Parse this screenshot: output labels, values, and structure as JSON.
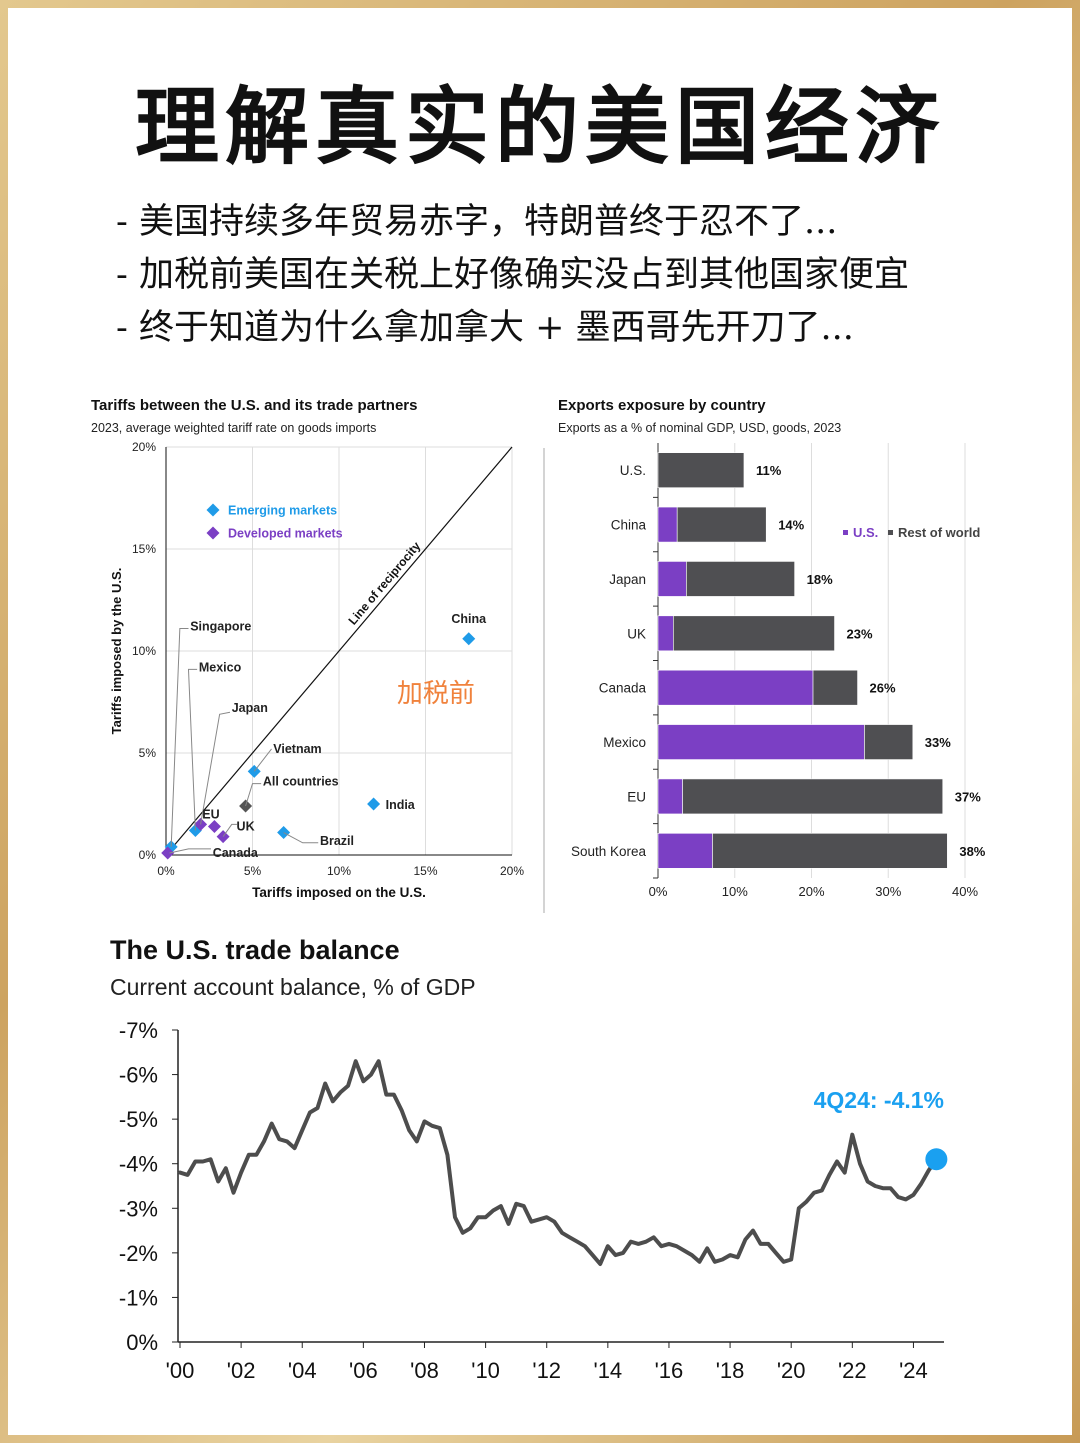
{
  "header": {
    "title": "理解真实的美国经济",
    "bullets": [
      "- 美国持续多年贸易赤字，特朗普终于忍不了...",
      "- 加税前美国在关税上好像确实没占到其他国家便宜",
      "- 终于知道为什么拿加拿大 + 墨西哥先开刀了..."
    ]
  },
  "colors": {
    "emerging": "#1f9be8",
    "developed": "#7b3fc4",
    "gray": "#555555",
    "line": "#4d4d4d",
    "highlight": "#1aa0f0",
    "annotation": "#f0823c"
  },
  "chart_data": [
    {
      "type": "scatter",
      "title": "Tariffs between the U.S. and its trade partners",
      "subtitle": "2023, average weighted tariff rate on goods imports",
      "xlabel": "Tariffs imposed on the U.S.",
      "ylabel": "Tariffs imposed by the U.S.",
      "xlim": [
        0,
        20
      ],
      "ylim": [
        0,
        20
      ],
      "x_ticks": [
        "0%",
        "5%",
        "10%",
        "15%",
        "20%"
      ],
      "y_ticks": [
        "0%",
        "5%",
        "10%",
        "15%",
        "20%"
      ],
      "diagonal_label": "Line of reciprocity",
      "annotation": "加税前",
      "legend": [
        "Emerging markets",
        "Developed markets"
      ],
      "points": [
        {
          "label": "China",
          "x": 17.5,
          "y": 10.6,
          "group": "emerging"
        },
        {
          "label": "India",
          "x": 12.0,
          "y": 2.5,
          "group": "emerging"
        },
        {
          "label": "Brazil",
          "x": 6.8,
          "y": 1.1,
          "group": "emerging"
        },
        {
          "label": "Vietnam",
          "x": 5.1,
          "y": 4.1,
          "group": "emerging"
        },
        {
          "label": "All countries",
          "x": 4.6,
          "y": 2.4,
          "group": "all"
        },
        {
          "label": "Singapore",
          "x": 0.3,
          "y": 0.4,
          "group": "emerging"
        },
        {
          "label": "Mexico",
          "x": 1.7,
          "y": 1.2,
          "group": "emerging"
        },
        {
          "label": "Japan",
          "x": 2.0,
          "y": 1.5,
          "group": "developed"
        },
        {
          "label": "EU",
          "x": 2.8,
          "y": 1.4,
          "group": "developed"
        },
        {
          "label": "UK",
          "x": 3.3,
          "y": 0.9,
          "group": "developed"
        },
        {
          "label": "Canada",
          "x": 0.1,
          "y": 0.1,
          "group": "developed"
        }
      ]
    },
    {
      "type": "bar",
      "title": "Exports exposure by country",
      "subtitle": "Exports as a % of nominal GDP, USD, goods, 2023",
      "categories": [
        "U.S.",
        "China",
        "Japan",
        "UK",
        "Canada",
        "Mexico",
        "EU",
        "South Korea"
      ],
      "series": [
        {
          "name": "U.S.",
          "values": [
            0,
            2.5,
            3.7,
            2.0,
            20.2,
            26.9,
            3.2,
            7.1
          ]
        },
        {
          "name": "Rest of world",
          "values": [
            11.2,
            11.6,
            14.1,
            21.0,
            5.8,
            6.3,
            33.9,
            30.6
          ]
        }
      ],
      "totals": [
        "11%",
        "14%",
        "18%",
        "23%",
        "26%",
        "33%",
        "37%",
        "38%"
      ],
      "xlim": [
        0,
        40
      ],
      "x_ticks": [
        "0%",
        "10%",
        "20%",
        "30%",
        "40%"
      ],
      "legend": [
        "U.S.",
        "Rest of world"
      ]
    },
    {
      "type": "line",
      "title": "The U.S. trade balance",
      "subtitle": "Current account balance, % of GDP",
      "ylim": [
        0,
        -7
      ],
      "y_ticks": [
        "-7%",
        "-6%",
        "-5%",
        "-4%",
        "-3%",
        "-2%",
        "-1%",
        "0%"
      ],
      "x_ticks": [
        "'00",
        "'02",
        "'04",
        "'06",
        "'08",
        "'10",
        "'12",
        "'14",
        "'16",
        "'18",
        "'20",
        "'22",
        "'24"
      ],
      "callout": "4Q24: -4.1%",
      "series": [
        {
          "name": "Current account balance",
          "x": [
            2000.0,
            2000.25,
            2000.5,
            2000.75,
            2001.0,
            2001.25,
            2001.5,
            2001.75,
            2002.0,
            2002.25,
            2002.5,
            2002.75,
            2003.0,
            2003.25,
            2003.5,
            2003.75,
            2004.0,
            2004.25,
            2004.5,
            2004.75,
            2005.0,
            2005.25,
            2005.5,
            2005.75,
            2006.0,
            2006.25,
            2006.5,
            2006.75,
            2007.0,
            2007.25,
            2007.5,
            2007.75,
            2008.0,
            2008.25,
            2008.5,
            2008.75,
            2009.0,
            2009.25,
            2009.5,
            2009.75,
            2010.0,
            2010.25,
            2010.5,
            2010.75,
            2011.0,
            2011.25,
            2011.5,
            2011.75,
            2012.0,
            2012.25,
            2012.5,
            2012.75,
            2013.0,
            2013.25,
            2013.5,
            2013.75,
            2014.0,
            2014.25,
            2014.5,
            2014.75,
            2015.0,
            2015.25,
            2015.5,
            2015.75,
            2016.0,
            2016.25,
            2016.5,
            2016.75,
            2017.0,
            2017.25,
            2017.5,
            2017.75,
            2018.0,
            2018.25,
            2018.5,
            2018.75,
            2019.0,
            2019.25,
            2019.5,
            2019.75,
            2020.0,
            2020.25,
            2020.5,
            2020.75,
            2021.0,
            2021.25,
            2021.5,
            2021.75,
            2022.0,
            2022.25,
            2022.5,
            2022.75,
            2023.0,
            2023.25,
            2023.5,
            2023.75,
            2024.0,
            2024.25,
            2024.5,
            2024.75
          ],
          "values": [
            -3.8,
            -3.75,
            -4.05,
            -4.05,
            -4.1,
            -3.6,
            -3.9,
            -3.35,
            -3.8,
            -4.2,
            -4.2,
            -4.5,
            -4.9,
            -4.55,
            -4.5,
            -4.35,
            -4.75,
            -5.15,
            -5.25,
            -5.8,
            -5.4,
            -5.6,
            -5.75,
            -6.3,
            -5.85,
            -6.0,
            -6.3,
            -5.55,
            -5.55,
            -5.2,
            -4.75,
            -4.5,
            -4.95,
            -4.85,
            -4.8,
            -4.2,
            -2.8,
            -2.45,
            -2.55,
            -2.8,
            -2.8,
            -2.95,
            -3.05,
            -2.65,
            -3.1,
            -3.05,
            -2.7,
            -2.75,
            -2.8,
            -2.7,
            -2.45,
            -2.35,
            -2.25,
            -2.15,
            -1.95,
            -1.75,
            -2.15,
            -1.95,
            -2.0,
            -2.25,
            -2.2,
            -2.25,
            -2.35,
            -2.15,
            -2.2,
            -2.15,
            -2.05,
            -1.95,
            -1.8,
            -2.1,
            -1.8,
            -1.85,
            -1.95,
            -1.9,
            -2.3,
            -2.5,
            -2.2,
            -2.2,
            -2.0,
            -1.8,
            -1.85,
            -3.0,
            -3.15,
            -3.35,
            -3.4,
            -3.75,
            -4.05,
            -3.8,
            -4.65,
            -4.0,
            -3.6,
            -3.5,
            -3.45,
            -3.45,
            -3.25,
            -3.2,
            -3.3,
            -3.55,
            -3.85,
            -4.1
          ]
        }
      ]
    }
  ]
}
